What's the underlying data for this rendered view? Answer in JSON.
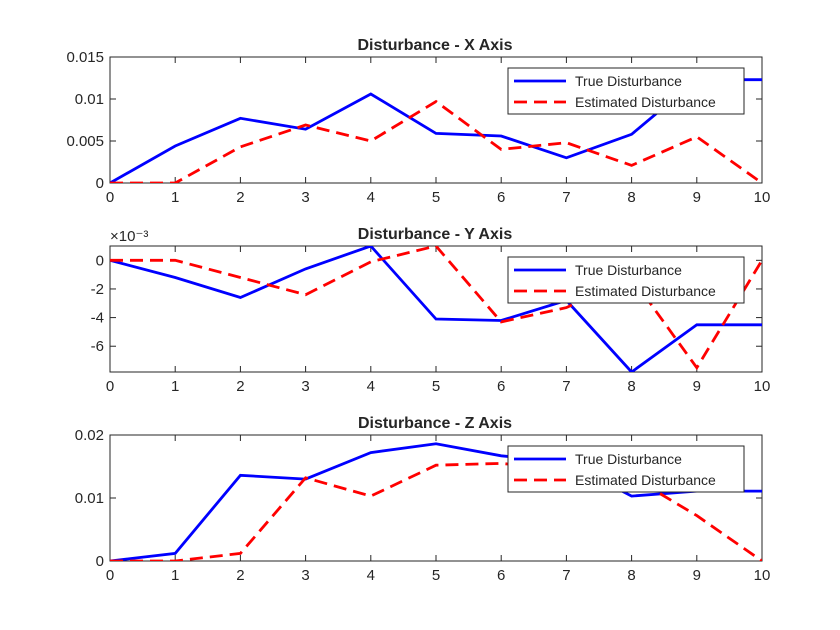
{
  "chart_data": [
    {
      "type": "line",
      "title": "Disturbance - X Axis",
      "xlabel": "",
      "ylabel": "",
      "x": [
        0,
        1,
        2,
        3,
        4,
        5,
        6,
        7,
        8,
        9,
        10
      ],
      "xlim": [
        0,
        10
      ],
      "ylim": [
        0,
        0.015
      ],
      "xticks": [
        0,
        1,
        2,
        3,
        4,
        5,
        6,
        7,
        8,
        9,
        10
      ],
      "yticks": [
        0,
        0.005,
        0.01,
        0.015
      ],
      "ytick_labels": [
        "0",
        "0.005",
        "0.01",
        "0.015"
      ],
      "exponent_label": "",
      "legend_position": "top-right",
      "series": [
        {
          "name": "True Disturbance",
          "color": "#0000ff",
          "style": "solid",
          "values": [
            0,
            0.0044,
            0.0077,
            0.0064,
            0.0106,
            0.0059,
            0.0056,
            0.003,
            0.0058,
            0.0123,
            0.0123
          ]
        },
        {
          "name": "Estimated Disturbance",
          "color": "#ff0000",
          "style": "dashed",
          "values": [
            0,
            0,
            0.0043,
            0.0069,
            0.005,
            0.0097,
            0.004,
            0.0048,
            0.0021,
            0.0055,
            0
          ]
        }
      ]
    },
    {
      "type": "line",
      "title": "Disturbance - Y Axis",
      "xlabel": "",
      "ylabel": "",
      "x": [
        0,
        1,
        2,
        3,
        4,
        5,
        6,
        7,
        8,
        9,
        10
      ],
      "xlim": [
        0,
        10
      ],
      "ylim": [
        -0.0078,
        0.001
      ],
      "xticks": [
        0,
        1,
        2,
        3,
        4,
        5,
        6,
        7,
        8,
        9,
        10
      ],
      "yticks": [
        0,
        -0.002,
        -0.004,
        -0.006
      ],
      "ytick_labels": [
        "0",
        "-2",
        "-4",
        "-6"
      ],
      "exponent_label": "×10⁻³",
      "legend_position": "top-right",
      "series": [
        {
          "name": "True Disturbance",
          "color": "#0000ff",
          "style": "solid",
          "values": [
            0,
            -0.0012,
            -0.0026,
            -0.0006,
            0.001,
            -0.0041,
            -0.0042,
            -0.0028,
            -0.0078,
            -0.0045,
            -0.0045
          ]
        },
        {
          "name": "Estimated Disturbance",
          "color": "#ff0000",
          "style": "dashed",
          "values": [
            0,
            0,
            -0.0012,
            -0.0024,
            -0.0001,
            0.001,
            -0.0043,
            -0.0033,
            -0.0012,
            -0.0075,
            0
          ]
        }
      ]
    },
    {
      "type": "line",
      "title": "Disturbance - Z Axis",
      "xlabel": "",
      "ylabel": "",
      "x": [
        0,
        1,
        2,
        3,
        4,
        5,
        6,
        7,
        8,
        9,
        10
      ],
      "xlim": [
        0,
        10
      ],
      "ylim": [
        0,
        0.02
      ],
      "xticks": [
        0,
        1,
        2,
        3,
        4,
        5,
        6,
        7,
        8,
        9,
        10
      ],
      "yticks": [
        0,
        0.01,
        0.02
      ],
      "ytick_labels": [
        "0",
        "0.01",
        "0.02"
      ],
      "exponent_label": "",
      "legend_position": "top-right",
      "series": [
        {
          "name": "True Disturbance",
          "color": "#0000ff",
          "style": "solid",
          "values": [
            0,
            0.0012,
            0.0136,
            0.013,
            0.0172,
            0.0186,
            0.0167,
            0.0157,
            0.0103,
            0.0111,
            0.0111
          ]
        },
        {
          "name": "Estimated Disturbance",
          "color": "#ff0000",
          "style": "dashed",
          "values": [
            0,
            0,
            0.0012,
            0.0132,
            0.0103,
            0.0152,
            0.0155,
            0.0145,
            0.0134,
            0.0072,
            0
          ]
        }
      ]
    }
  ]
}
